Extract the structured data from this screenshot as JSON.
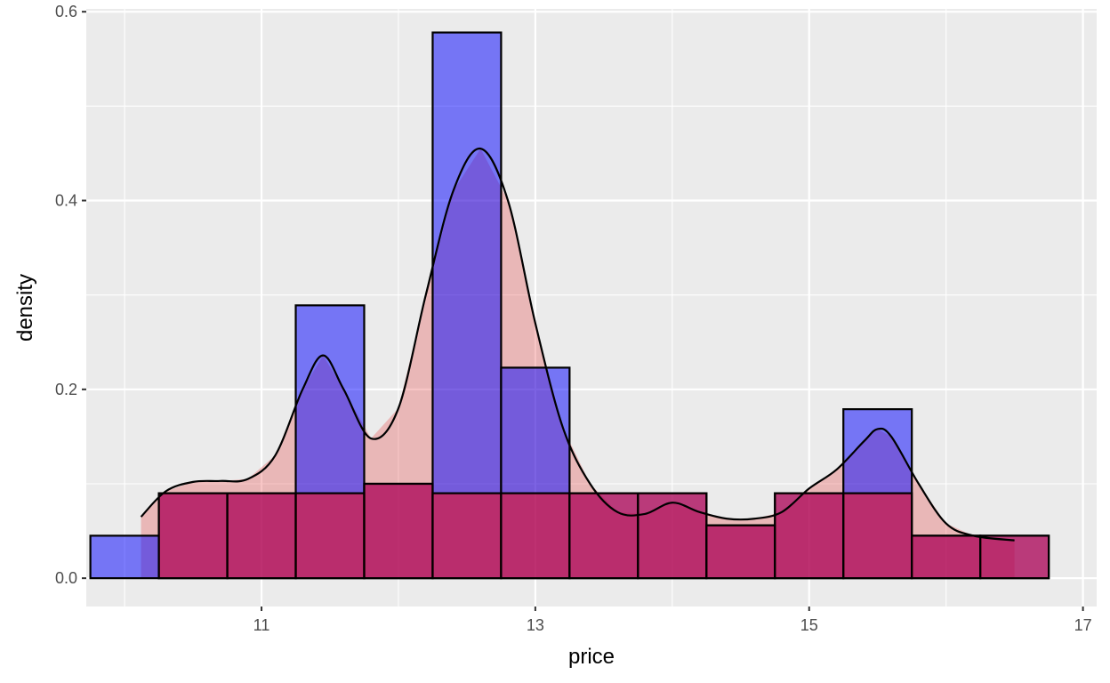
{
  "chart_data": {
    "type": "histogram",
    "title": "",
    "xlabel": "price",
    "ylabel": "density",
    "xlim": [
      9.72,
      17.1
    ],
    "ylim": [
      -0.03,
      0.603
    ],
    "x_ticks": [
      11,
      13,
      15,
      17
    ],
    "x_tick_labels": [
      "11",
      "13",
      "15",
      "17"
    ],
    "y_ticks": [
      0.0,
      0.2,
      0.4,
      0.6
    ],
    "y_tick_labels": [
      "0.0",
      "0.2",
      "0.4",
      "0.6"
    ],
    "grid": true,
    "histogram": {
      "bin_width": 0.5,
      "bins_left": [
        9.75,
        10.25,
        10.75,
        11.25,
        11.75,
        12.25,
        12.75,
        13.25,
        13.75,
        14.25,
        14.75,
        15.25,
        15.75,
        16.25
      ],
      "series": [
        {
          "values": [
            0.045,
            0.09,
            0.09,
            0.289,
            0.1,
            0.578,
            0.223,
            0.09,
            0.09,
            0.056,
            0.09,
            0.179,
            0.045,
            0.045
          ],
          "fill": "#0000FF",
          "opacity": 0.5
        },
        {
          "values": [
            0.0,
            0.09,
            0.09,
            0.09,
            0.1,
            0.09,
            0.09,
            0.09,
            0.09,
            0.056,
            0.09,
            0.09,
            0.045,
            0.045
          ],
          "fill": "#FF0000",
          "opacity": 0.5
        }
      ]
    },
    "density_curve": {
      "fill": "#E41A1C",
      "fill_opacity": 0.25,
      "x": [
        10.12,
        10.3,
        10.5,
        10.7,
        10.9,
        11.1,
        11.3,
        11.45,
        11.6,
        11.8,
        12.0,
        12.2,
        12.4,
        12.6,
        12.8,
        13.0,
        13.2,
        13.4,
        13.6,
        13.8,
        14.0,
        14.2,
        14.4,
        14.6,
        14.8,
        15.0,
        15.2,
        15.4,
        15.5,
        15.6,
        15.8,
        16.0,
        16.2,
        16.5
      ],
      "y": [
        0.065,
        0.092,
        0.102,
        0.103,
        0.105,
        0.13,
        0.2,
        0.236,
        0.2,
        0.148,
        0.18,
        0.3,
        0.41,
        0.455,
        0.4,
        0.27,
        0.16,
        0.1,
        0.07,
        0.068,
        0.08,
        0.07,
        0.063,
        0.063,
        0.07,
        0.095,
        0.115,
        0.145,
        0.158,
        0.15,
        0.1,
        0.058,
        0.045,
        0.04
      ]
    }
  },
  "colors": {
    "panel_bg": "#EBEBEB",
    "grid_major": "#FFFFFF",
    "bar_outline": "#000000",
    "curve_line": "#000000"
  }
}
